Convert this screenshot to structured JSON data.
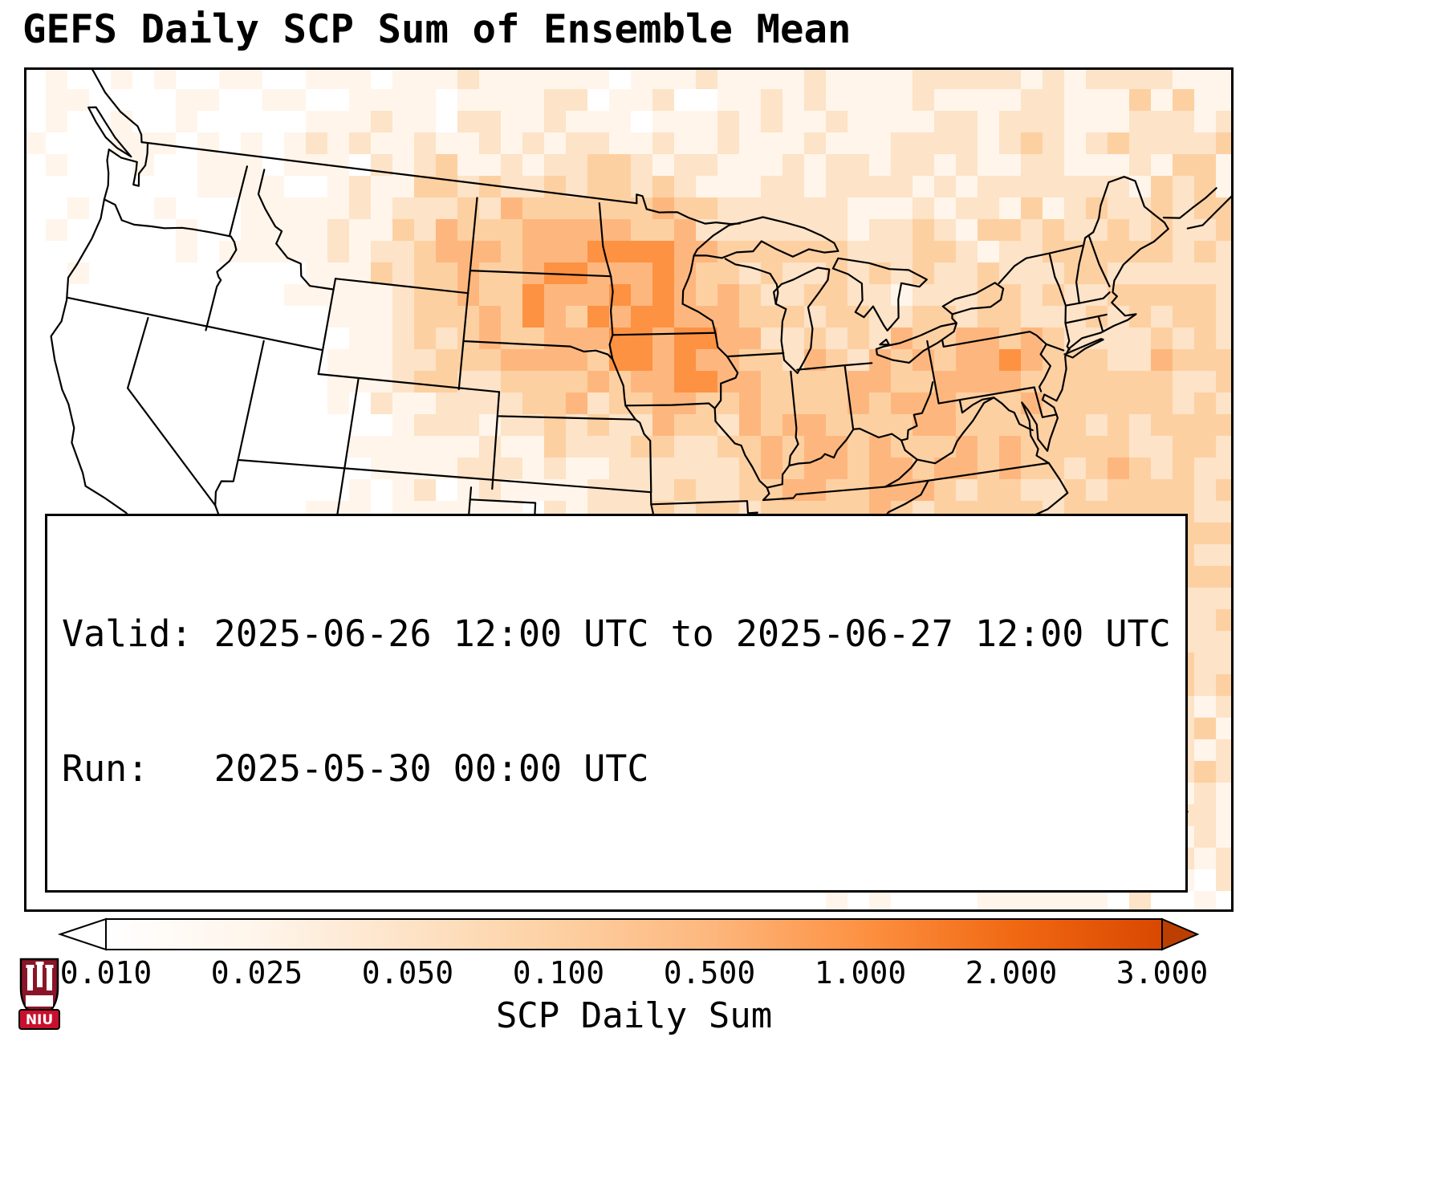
{
  "title": "GEFS Daily SCP Sum of Ensemble Mean",
  "info_box": {
    "valid_line": "Valid: 2025-06-26 12:00 UTC to 2025-06-27 12:00 UTC",
    "run_line": "Run:   2025-05-30 00:00 UTC"
  },
  "colorbar": {
    "label": "SCP Daily Sum",
    "ticks": [
      "0.010",
      "0.025",
      "0.050",
      "0.100",
      "0.500",
      "1.000",
      "2.000",
      "3.000"
    ],
    "gradient": [
      "#ffffff",
      "#fff5eb",
      "#fde3c7",
      "#fdd0a2",
      "#fdb77e",
      "#fd9243",
      "#f16913",
      "#d94801"
    ],
    "under_color": "#ffffff",
    "over_color": "#bc3f02",
    "outline_color": "#000000"
  },
  "map": {
    "level_colors": [
      "#ffffff",
      "#fff5eb",
      "#fde3c7",
      "#fdd0a2",
      "#fdb77e",
      "#fd9243",
      "#f16913",
      "#d94801"
    ],
    "border_color": "#000000",
    "foreign_border_color": "#ababab",
    "frame_color": "#000000",
    "background": "#ffffff"
  },
  "logo": {
    "text": "NIU",
    "shield_color": "#8a1528",
    "banner_color": "#c8102e",
    "castle_color": "#ffffff"
  }
}
